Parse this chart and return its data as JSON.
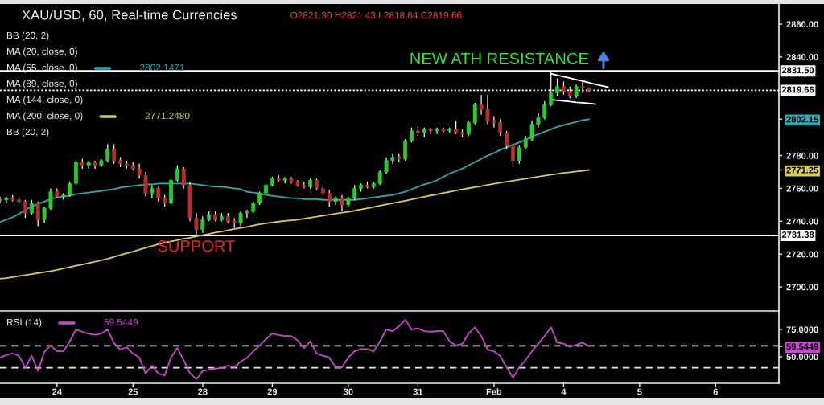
{
  "chart_data": [
    {
      "type": "candlestick",
      "title": "XAU/USD, 60, Real-time Currencies",
      "subtitle": "O2821.30 H2821.43 L2818.64 C2819.66",
      "categories": [
        null,
        null,
        null,
        null,
        null,
        null,
        null,
        null,
        null,
        null,
        null,
        null,
        null,
        null,
        null,
        null,
        null,
        null,
        null,
        null,
        null,
        null,
        null,
        null,
        null,
        null,
        null,
        null,
        null,
        null,
        null,
        null,
        null,
        null,
        null,
        null,
        null,
        null,
        null,
        null,
        null,
        null,
        null,
        null,
        null,
        null,
        null,
        null,
        null,
        null,
        null,
        null,
        null,
        null,
        null,
        null,
        null,
        null,
        null,
        null,
        null,
        null,
        null,
        null,
        null,
        null,
        null,
        null,
        null,
        null,
        null,
        null,
        null,
        null,
        null,
        null,
        null,
        null,
        null,
        null,
        null,
        null,
        null,
        null,
        null,
        null,
        null,
        null,
        null,
        null,
        null,
        null,
        null,
        null,
        null,
        null,
        null,
        null,
        null,
        null,
        null,
        null,
        null,
        null,
        null,
        null,
        null,
        null,
        null,
        null,
        null,
        null,
        null,
        null,
        null,
        null,
        null,
        null,
        null,
        null,
        null,
        null,
        null
      ],
      "ohlc": [
        [
          2752.5,
          2755,
          2751,
          2753
        ],
        [
          2753,
          2755,
          2751,
          2754
        ],
        [
          2754,
          2756,
          2752,
          2753
        ],
        [
          2753,
          2755,
          2751,
          2752
        ],
        [
          2752,
          2753,
          2742,
          2745
        ],
        [
          2745,
          2753,
          2744,
          2751
        ],
        [
          2751,
          2752,
          2737,
          2741
        ],
        [
          2741,
          2749,
          2739,
          2748
        ],
        [
          2748,
          2760,
          2747,
          2758
        ],
        [
          2758,
          2760,
          2754,
          2755
        ],
        [
          2755,
          2757,
          2753,
          2756
        ],
        [
          2756,
          2764,
          2755,
          2763
        ],
        [
          2763,
          2777,
          2762,
          2776
        ],
        [
          2776,
          2778,
          2772,
          2774
        ],
        [
          2774,
          2777,
          2772,
          2776
        ],
        [
          2776,
          2777,
          2772,
          2774
        ],
        [
          2774,
          2778,
          2773,
          2777
        ],
        [
          2777,
          2787,
          2776,
          2784
        ],
        [
          2784,
          2787,
          2775,
          2777
        ],
        [
          2777,
          2779,
          2773,
          2775
        ],
        [
          2775,
          2777,
          2772,
          2774
        ],
        [
          2774,
          2776,
          2771,
          2772
        ],
        [
          2772,
          2775,
          2766,
          2768
        ],
        [
          2768,
          2770,
          2755,
          2757
        ],
        [
          2757,
          2762,
          2754,
          2760
        ],
        [
          2760,
          2761,
          2752,
          2754
        ],
        [
          2754,
          2756,
          2749,
          2751
        ],
        [
          2751,
          2766,
          2750,
          2765
        ],
        [
          2765,
          2774,
          2764,
          2772
        ],
        [
          2772,
          2773,
          2760,
          2762
        ],
        [
          2762,
          2764,
          2740,
          2742
        ],
        [
          2742,
          2745,
          2732,
          2735
        ],
        [
          2735,
          2743,
          2733,
          2741
        ],
        [
          2741,
          2746,
          2740,
          2744
        ],
        [
          2744,
          2746,
          2740,
          2741
        ],
        [
          2741,
          2745,
          2740,
          2743
        ],
        [
          2743,
          2745,
          2739,
          2740
        ],
        [
          2740,
          2742,
          2736,
          2739
        ],
        [
          2739,
          2746,
          2737,
          2745
        ],
        [
          2745,
          2747,
          2742,
          2746
        ],
        [
          2746,
          2752,
          2745,
          2751
        ],
        [
          2751,
          2758,
          2750,
          2757
        ],
        [
          2757,
          2763,
          2756,
          2762
        ],
        [
          2762,
          2767,
          2761,
          2766
        ],
        [
          2766,
          2768,
          2764,
          2765
        ],
        [
          2765,
          2767,
          2763,
          2766
        ],
        [
          2766,
          2767,
          2763,
          2764
        ],
        [
          2764,
          2765,
          2761,
          2762
        ],
        [
          2762,
          2764,
          2760,
          2761
        ],
        [
          2761,
          2766,
          2760,
          2765
        ],
        [
          2765,
          2766,
          2759,
          2760
        ],
        [
          2760,
          2762,
          2756,
          2757
        ],
        [
          2757,
          2759,
          2749,
          2752
        ],
        [
          2752,
          2755,
          2750,
          2754
        ],
        [
          2754,
          2756,
          2746,
          2750
        ],
        [
          2750,
          2755,
          2749,
          2754
        ],
        [
          2754,
          2762,
          2753,
          2760
        ],
        [
          2760,
          2763,
          2758,
          2762
        ],
        [
          2762,
          2764,
          2760,
          2761
        ],
        [
          2761,
          2764,
          2760,
          2763
        ],
        [
          2763,
          2771,
          2762,
          2770
        ],
        [
          2770,
          2779,
          2769,
          2777
        ],
        [
          2777,
          2781,
          2775,
          2779
        ],
        [
          2779,
          2781,
          2776,
          2778
        ],
        [
          2778,
          2790,
          2777,
          2789
        ],
        [
          2789,
          2797,
          2788,
          2795
        ],
        [
          2795,
          2798,
          2792,
          2794
        ],
        [
          2794,
          2797,
          2791,
          2796
        ],
        [
          2796,
          2797,
          2793,
          2795
        ],
        [
          2795,
          2797,
          2793,
          2796
        ],
        [
          2796,
          2797,
          2794,
          2795
        ],
        [
          2795,
          2797,
          2794,
          2796
        ],
        [
          2796,
          2801,
          2793,
          2794
        ],
        [
          2794,
          2796,
          2791,
          2793
        ],
        [
          2793,
          2801,
          2792,
          2800
        ],
        [
          2800,
          2812,
          2799,
          2811
        ],
        [
          2811,
          2817,
          2805,
          2808
        ],
        [
          2808,
          2817,
          2799,
          2801
        ],
        [
          2801,
          2804,
          2797,
          2800
        ],
        [
          2800,
          2802,
          2792,
          2794
        ],
        [
          2794,
          2795,
          2784,
          2786
        ],
        [
          2786,
          2787,
          2773,
          2777
        ],
        [
          2777,
          2786,
          2775,
          2785
        ],
        [
          2785,
          2792,
          2784,
          2790
        ],
        [
          2790,
          2801,
          2789,
          2799
        ],
        [
          2799,
          2806,
          2797,
          2803
        ],
        [
          2803,
          2813,
          2802,
          2811
        ],
        [
          2811,
          2831.2,
          2810,
          2818
        ],
        [
          2818,
          2827,
          2816,
          2822
        ],
        [
          2822,
          2825,
          2817,
          2819
        ],
        [
          2819,
          2822,
          2815,
          2816
        ],
        [
          2816,
          2823,
          2815,
          2822
        ],
        [
          2822,
          2825,
          2818,
          2821.3
        ],
        [
          2821.3,
          2821.43,
          2818.64,
          2819.66
        ],
        null,
        null,
        null,
        null,
        null,
        null,
        null,
        null,
        null,
        null,
        null,
        null,
        null,
        null,
        null,
        null,
        null,
        null,
        null,
        null,
        null,
        null,
        null,
        null,
        null,
        null,
        null,
        null,
        null
      ],
      "colors": [
        "#33c633",
        "#33c633",
        "#b3312c",
        "#b3312c",
        "#b3312c",
        "#33c633",
        "#b3312c",
        "#33c633",
        "#33c633",
        "#b3312c",
        "#33c633",
        "#33c633",
        "#33c633",
        "#b3312c",
        "#33c633",
        "#b3312c",
        "#33c633",
        "#33c633",
        "#b3312c",
        "#b3312c",
        "#b3312c",
        "#b3312c",
        "#b3312c",
        "#b3312c",
        "#33c633",
        "#b3312c",
        "#b3312c",
        "#33c633",
        "#33c633",
        "#b3312c",
        "#b3312c",
        "#b3312c",
        "#33c633",
        "#33c633",
        "#b3312c",
        "#33c633",
        "#b3312c",
        "#b3312c",
        "#33c633",
        "#33c633",
        "#33c633",
        "#33c633",
        "#33c633",
        "#33c633",
        "#b3312c",
        "#33c633",
        "#b3312c",
        "#b3312c",
        "#b3312c",
        "#33c633",
        "#b3312c",
        "#b3312c",
        "#b3312c",
        "#33c633",
        "#b3312c",
        "#33c633",
        "#33c633",
        "#33c633",
        "#b3312c",
        "#33c633",
        "#33c633",
        "#33c633",
        "#33c633",
        "#b3312c",
        "#33c633",
        "#33c633",
        "#b3312c",
        "#33c633",
        "#b3312c",
        "#33c633",
        "#b3312c",
        "#33c633",
        "#b3312c",
        "#b3312c",
        "#33c633",
        "#33c633",
        "#b3312c",
        "#b3312c",
        "#b3312c",
        "#b3312c",
        "#b3312c",
        "#b3312c",
        "#33c633",
        "#33c633",
        "#33c633",
        "#33c633",
        "#33c633",
        "#33c633",
        "#33c633",
        "#b3312c",
        "#b3312c",
        "#33c633",
        "#b3312c",
        "#b3312c",
        null,
        null,
        null,
        null,
        null,
        null,
        null,
        null,
        null,
        null,
        null,
        null,
        null,
        null,
        null,
        null,
        null,
        null,
        null,
        null,
        null,
        null,
        null,
        null,
        null,
        null,
        null,
        null,
        null
      ],
      "series": [
        {
          "name": "BB (20, 2)",
          "values": [
            null,
            null,
            null,
            null,
            null,
            null,
            null,
            null,
            null,
            null,
            null,
            null,
            null,
            null,
            null,
            null,
            null,
            null,
            null,
            null,
            null,
            null,
            null,
            null,
            null,
            null,
            null,
            null,
            null,
            null,
            null,
            null,
            null,
            null,
            null,
            null,
            null,
            null,
            null,
            null,
            null,
            null,
            null,
            null,
            null,
            null,
            null,
            null,
            null,
            null,
            null,
            null,
            null,
            null,
            null,
            null,
            null,
            null,
            null,
            null,
            null,
            null,
            null,
            null,
            null,
            null,
            null,
            null,
            null,
            null,
            null,
            null,
            null,
            null,
            null,
            null,
            null,
            null,
            null,
            null,
            null,
            null,
            null,
            null,
            null,
            null,
            null,
            null,
            null,
            null,
            null,
            null,
            null,
            null,
            null,
            null,
            null,
            null,
            null,
            null,
            null,
            null,
            null,
            null,
            null,
            null,
            null,
            null,
            null,
            null,
            null,
            null,
            null,
            null,
            null,
            null,
            null,
            null,
            null,
            null,
            null,
            null,
            null
          ]
        },
        {
          "name": "MA (20, close, 0)",
          "values": [
            null,
            null,
            null,
            null,
            null,
            null,
            null,
            null,
            null,
            null,
            null,
            null,
            null,
            null,
            null,
            null,
            null,
            null,
            null,
            null,
            null,
            null,
            null,
            null,
            null,
            null,
            null,
            null,
            null,
            null,
            null,
            null,
            null,
            null,
            null,
            null,
            null,
            null,
            null,
            null,
            null,
            null,
            null,
            null,
            null,
            null,
            null,
            null,
            null,
            null,
            null,
            null,
            null,
            null,
            null,
            null,
            null,
            null,
            null,
            null,
            null,
            null,
            null,
            null,
            null,
            null,
            null,
            null,
            null,
            null,
            null,
            null,
            null,
            null,
            null,
            null,
            null,
            null,
            null,
            null,
            null,
            null,
            null,
            null,
            null,
            null,
            null,
            null,
            null,
            null,
            null,
            null,
            null,
            null,
            null,
            null,
            null,
            null,
            null,
            null,
            null,
            null,
            null,
            null,
            null,
            null,
            null,
            null,
            null,
            null,
            null,
            null,
            null,
            null,
            null,
            null,
            null,
            null,
            null,
            null,
            null,
            null,
            null
          ]
        },
        {
          "type": "line",
          "name": "MA (55, close, 0)",
          "color": "#30a9b5",
          "values": [
            2739.5,
            2741,
            2742.5,
            2744.5,
            2747,
            2749,
            2750.5,
            2752,
            2753.5,
            2754.5,
            2755,
            2755.5,
            2756.5,
            2757,
            2757.5,
            2758,
            2758.5,
            2759,
            2759.5,
            2760.5,
            2761,
            2761.5,
            2762,
            2762.5,
            2762.5,
            2763,
            2763,
            2763,
            2763,
            2763,
            2763,
            2762.5,
            2762,
            2761.5,
            2761,
            2761,
            2760.5,
            2760,
            2759.5,
            2758,
            2757.5,
            2757,
            2756,
            2755.5,
            2755,
            2754.5,
            2754,
            2754,
            2753.5,
            2753.5,
            2753.5,
            2753,
            2753,
            2753,
            2753,
            2753,
            2753,
            2753.5,
            2754,
            2754.5,
            2755,
            2755.5,
            2756,
            2757,
            2758,
            2759.5,
            2761,
            2762.5,
            2763.5,
            2765,
            2767,
            2769,
            2770.5,
            2772,
            2774,
            2776,
            2778,
            2780,
            2781.5,
            2783.5,
            2785,
            2786.5,
            2788,
            2789.5,
            2791.5,
            2793,
            2794.5,
            2796,
            2797.5,
            2798.5,
            2799.5,
            2800.5,
            2801.5,
            2802.1471,
            null,
            null,
            null,
            null,
            null,
            null,
            null,
            null,
            null,
            null,
            null,
            null,
            null,
            null,
            null,
            null,
            null,
            null,
            null,
            null,
            null,
            null,
            null,
            null,
            null,
            null,
            null,
            null,
            null
          ]
        },
        {
          "name": "MA (89, close, 0)",
          "values": [
            null,
            null,
            null,
            null,
            null,
            null,
            null,
            null,
            null,
            null,
            null,
            null,
            null,
            null,
            null,
            null,
            null,
            null,
            null,
            null,
            null,
            null,
            null,
            null,
            null,
            null,
            null,
            null,
            null,
            null,
            null,
            null,
            null,
            null,
            null,
            null,
            null,
            null,
            null,
            null,
            null,
            null,
            null,
            null,
            null,
            null,
            null,
            null,
            null,
            null,
            null,
            null,
            null,
            null,
            null,
            null,
            null,
            null,
            null,
            null,
            null,
            null,
            null,
            null,
            null,
            null,
            null,
            null,
            null,
            null,
            null,
            null,
            null,
            null,
            null,
            null,
            null,
            null,
            null,
            null,
            null,
            null,
            null,
            null,
            null,
            null,
            null,
            null,
            null,
            null,
            null,
            null,
            null,
            null,
            null,
            null,
            null,
            null,
            null,
            null,
            null,
            null,
            null,
            null,
            null,
            null,
            null,
            null,
            null,
            null,
            null,
            null,
            null,
            null,
            null,
            null,
            null,
            null,
            null,
            null,
            null,
            null,
            null
          ]
        },
        {
          "name": "MA (144, close, 0)",
          "values": [
            null,
            null,
            null,
            null,
            null,
            null,
            null,
            null,
            null,
            null,
            null,
            null,
            null,
            null,
            null,
            null,
            null,
            null,
            null,
            null,
            null,
            null,
            null,
            null,
            null,
            null,
            null,
            null,
            null,
            null,
            null,
            null,
            null,
            null,
            null,
            null,
            null,
            null,
            null,
            null,
            null,
            null,
            null,
            null,
            null,
            null,
            null,
            null,
            null,
            null,
            null,
            null,
            null,
            null,
            null,
            null,
            null,
            null,
            null,
            null,
            null,
            null,
            null,
            null,
            null,
            null,
            null,
            null,
            null,
            null,
            null,
            null,
            null,
            null,
            null,
            null,
            null,
            null,
            null,
            null,
            null,
            null,
            null,
            null,
            null,
            null,
            null,
            null,
            null,
            null,
            null,
            null,
            null,
            null,
            null,
            null,
            null,
            null,
            null,
            null,
            null,
            null,
            null,
            null,
            null,
            null,
            null,
            null,
            null,
            null,
            null,
            null,
            null,
            null,
            null,
            null,
            null,
            null,
            null,
            null,
            null,
            null,
            null
          ]
        },
        {
          "type": "line",
          "name": "MA (200, close, 0)",
          "color": "#d6cb5c",
          "values": [
            2705,
            2705.4,
            2706,
            2706.6,
            2707.2,
            2707.8,
            2708.5,
            2709.1,
            2709.7,
            2710.4,
            2711.3,
            2712.1,
            2713,
            2713.7,
            2714.6,
            2715.4,
            2716.3,
            2717.1,
            2718.3,
            2719.4,
            2720.5,
            2721.5,
            2722.7,
            2723.8,
            2724.9,
            2726.1,
            2727,
            2727.8,
            2728.5,
            2729.3,
            2730,
            2730.8,
            2731.5,
            2732.3,
            2733.1,
            2733.8,
            2734.5,
            2735.3,
            2735.9,
            2736.6,
            2737.4,
            2738.1,
            2738.8,
            2739.3,
            2739.8,
            2740.2,
            2740.6,
            2741,
            2741.6,
            2742.2,
            2742.8,
            2743.4,
            2744,
            2744.6,
            2745.2,
            2745.7,
            2746.4,
            2747.2,
            2747.9,
            2748.7,
            2749.5,
            2750.3,
            2751,
            2751.7,
            2752.5,
            2753.3,
            2754.1,
            2754.9,
            2755.7,
            2756.4,
            2757.2,
            2757.9,
            2758.7,
            2759.4,
            2760.1,
            2760.8,
            2761.4,
            2762.1,
            2762.8,
            2763.5,
            2764.1,
            2764.7,
            2765.3,
            2765.9,
            2766.5,
            2767.1,
            2767.7,
            2768.3,
            2768.8,
            2769.4,
            2769.8,
            2770.3,
            2770.7,
            2771.248,
            null,
            null,
            null,
            null,
            null,
            null,
            null,
            null,
            null,
            null,
            null,
            null,
            null,
            null,
            null,
            null,
            null,
            null,
            null,
            null,
            null,
            null,
            null,
            null,
            null,
            null,
            null,
            null,
            null
          ]
        },
        {
          "name": "BB (20, 2)",
          "values": [
            null,
            null,
            null,
            null,
            null,
            null,
            null,
            null,
            null,
            null,
            null,
            null,
            null,
            null,
            null,
            null,
            null,
            null,
            null,
            null,
            null,
            null,
            null,
            null,
            null,
            null,
            null,
            null,
            null,
            null,
            null,
            null,
            null,
            null,
            null,
            null,
            null,
            null,
            null,
            null,
            null,
            null,
            null,
            null,
            null,
            null,
            null,
            null,
            null,
            null,
            null,
            null,
            null,
            null,
            null,
            null,
            null,
            null,
            null,
            null,
            null,
            null,
            null,
            null,
            null,
            null,
            null,
            null,
            null,
            null,
            null,
            null,
            null,
            null,
            null,
            null,
            null,
            null,
            null,
            null,
            null,
            null,
            null,
            null,
            null,
            null,
            null,
            null,
            null,
            null,
            null,
            null,
            null,
            null,
            null,
            null,
            null,
            null,
            null,
            null,
            null,
            null,
            null,
            null,
            null,
            null,
            null,
            null,
            null,
            null,
            null,
            null,
            null,
            null,
            null,
            null,
            null,
            null,
            null,
            null,
            null,
            null,
            null
          ]
        },
        {
          "type": "line",
          "color": "#ffffff",
          "values": [
            null,
            null,
            null,
            null,
            null,
            null,
            null,
            null,
            null,
            null,
            null,
            null,
            null,
            null,
            null,
            null,
            null,
            null,
            null,
            null,
            null,
            null,
            null,
            null,
            null,
            null,
            null,
            null,
            null,
            null,
            null,
            null,
            null,
            null,
            null,
            null,
            null,
            null,
            null,
            null,
            null,
            null,
            null,
            null,
            null,
            null,
            null,
            null,
            null,
            null,
            null,
            null,
            null,
            null,
            null,
            null,
            null,
            null,
            null,
            null,
            null,
            null,
            null,
            null,
            null,
            null,
            null,
            null,
            null,
            null,
            null,
            null,
            null,
            null,
            null,
            null,
            null,
            null,
            null,
            null,
            null,
            null,
            null,
            null,
            null,
            null,
            null,
            2829.8,
            2828.9,
            2828.0,
            2827.1,
            2826.2,
            2825.3,
            2824.4,
            2823.4,
            2822.5,
            2821.6,
            null,
            null,
            null,
            null,
            null,
            null,
            null,
            null,
            null,
            null,
            null,
            null,
            null,
            null,
            null,
            null,
            null,
            null,
            null,
            null,
            null,
            null,
            null,
            null,
            null,
            null
          ]
        },
        {
          "type": "line",
          "color": "#ffffff",
          "values": [
            null,
            null,
            null,
            null,
            null,
            null,
            null,
            null,
            null,
            null,
            null,
            null,
            null,
            null,
            null,
            null,
            null,
            null,
            null,
            null,
            null,
            null,
            null,
            null,
            null,
            null,
            null,
            null,
            null,
            null,
            null,
            null,
            null,
            null,
            null,
            null,
            null,
            null,
            null,
            null,
            null,
            null,
            null,
            null,
            null,
            null,
            null,
            null,
            null,
            null,
            null,
            null,
            null,
            null,
            null,
            null,
            null,
            null,
            null,
            null,
            null,
            null,
            null,
            null,
            null,
            null,
            null,
            null,
            null,
            null,
            null,
            null,
            null,
            null,
            null,
            null,
            null,
            null,
            null,
            null,
            null,
            null,
            null,
            null,
            null,
            null,
            null,
            2814.0,
            2813.6,
            2813.2,
            2812.8,
            2812.4,
            2812.1,
            2811.7,
            2811.3,
            null,
            null,
            null,
            null,
            null,
            null,
            null,
            null,
            null,
            null,
            null,
            null,
            null,
            null,
            null,
            null,
            null,
            null,
            null,
            null,
            null,
            null,
            null,
            null,
            null,
            null,
            null,
            null
          ]
        }
      ],
      "ylim": [
        2685.4,
        2872.2
      ],
      "yticks": [
        {
          "value": 2700,
          "label": "2700.00"
        },
        {
          "value": 2720,
          "label": "2720.00"
        },
        {
          "value": 2740,
          "label": "2740.00"
        },
        {
          "value": 2760,
          "label": "2760.00"
        },
        {
          "value": 2771.25,
          "label": "2771.25"
        },
        {
          "value": 2780,
          "label": "2780.00"
        },
        {
          "value": 2802.15,
          "label": "2802.15"
        },
        {
          "value": 2840,
          "label": "2840.00"
        },
        {
          "value": 2860,
          "label": "2860.00"
        }
      ],
      "ref_lines": [
        {
          "axis": "y",
          "value": 2831.5,
          "label": "2831.50",
          "color": "#ffffff",
          "line_style": "solid"
        },
        {
          "axis": "y",
          "value": 2819.66,
          "label": "2819.66",
          "color": "#ffffff",
          "line_style": "dotted"
        },
        {
          "axis": "y",
          "value": 2731.38,
          "label": "2731.38",
          "color": "#ffffff",
          "line_style": "solid"
        }
      ],
      "annotations": [
        {
          "text": "NEW ATH RESISTANCE",
          "y": 2831.5
        },
        {
          "text": "SUPPORT",
          "y": 2731.38
        },
        "2802.1471",
        "2771.2480"
      ],
      "legend": "top left",
      "tick_labels": "y"
    },
    {
      "type": "line",
      "categories": [
        null,
        null,
        null,
        null,
        null,
        null,
        null,
        null,
        null,
        "24",
        null,
        null,
        null,
        null,
        null,
        null,
        null,
        null,
        null,
        null,
        null,
        "25",
        null,
        null,
        null,
        null,
        null,
        null,
        null,
        null,
        null,
        null,
        "28",
        null,
        null,
        null,
        null,
        null,
        null,
        null,
        null,
        null,
        null,
        "29",
        null,
        null,
        null,
        null,
        null,
        null,
        null,
        null,
        null,
        null,
        null,
        "30",
        null,
        null,
        null,
        null,
        null,
        null,
        null,
        null,
        null,
        null,
        "31",
        null,
        null,
        null,
        null,
        null,
        null,
        null,
        null,
        null,
        null,
        null,
        "Feb",
        null,
        null,
        null,
        null,
        null,
        null,
        null,
        null,
        null,
        null,
        "4",
        null,
        null,
        null,
        null,
        null,
        null,
        null,
        null,
        null,
        null,
        null,
        "5",
        null,
        null,
        null,
        null,
        null,
        null,
        null,
        null,
        null,
        null,
        null,
        "6",
        null,
        null,
        null,
        null,
        null,
        null,
        null,
        null,
        null
      ],
      "series": [
        {
          "name": "RSI (14)",
          "color": "#c847cc",
          "values": [
            49.3,
            51.5,
            53,
            51,
            39.7,
            51,
            37,
            54.4,
            60.3,
            55,
            55,
            64,
            75,
            72.8,
            71,
            70.1,
            71.3,
            75,
            62.5,
            56.6,
            58.8,
            52.9,
            49.3,
            34.6,
            41.9,
            34.6,
            33,
            49.3,
            58,
            47,
            35,
            29.4,
            37,
            38.2,
            39,
            39.7,
            42,
            40.4,
            45.6,
            49,
            55,
            60.3,
            66.2,
            71.3,
            70,
            69,
            69,
            65,
            58,
            64,
            53,
            51,
            49.3,
            40.4,
            40.4,
            49.3,
            55,
            57,
            57,
            55,
            64,
            75,
            73.5,
            78,
            83.8,
            75,
            76,
            73.5,
            73,
            73.5,
            73.5,
            64,
            60.3,
            61.8,
            71.3,
            77,
            69,
            56.6,
            55,
            50.7,
            40.4,
            30.9,
            40.4,
            47,
            55,
            62,
            69,
            77,
            63,
            62,
            59,
            61,
            63,
            59.5449,
            null,
            null,
            null,
            null,
            null,
            null,
            null,
            null,
            null,
            null,
            null,
            null,
            null,
            null,
            null,
            null,
            null,
            null,
            null,
            null,
            null,
            null,
            null,
            null,
            null,
            null,
            null,
            null,
            null
          ]
        }
      ],
      "ylim": [
        25.7,
        91.2
      ],
      "yticks": [
        {
          "value": 75,
          "label": "75.0000"
        },
        59.5449,
        {
          "value": 50,
          "label": "50.0000"
        }
      ],
      "ref_lines": [
        {
          "axis": "y",
          "value": 60,
          "color": "#e6e6e6",
          "line_style": "dashed"
        },
        {
          "axis": "y",
          "value": 40,
          "color": "#e6e6e6",
          "line_style": "dashed"
        }
      ],
      "annotations": [
        "59.5449"
      ],
      "legend": "top left"
    }
  ]
}
